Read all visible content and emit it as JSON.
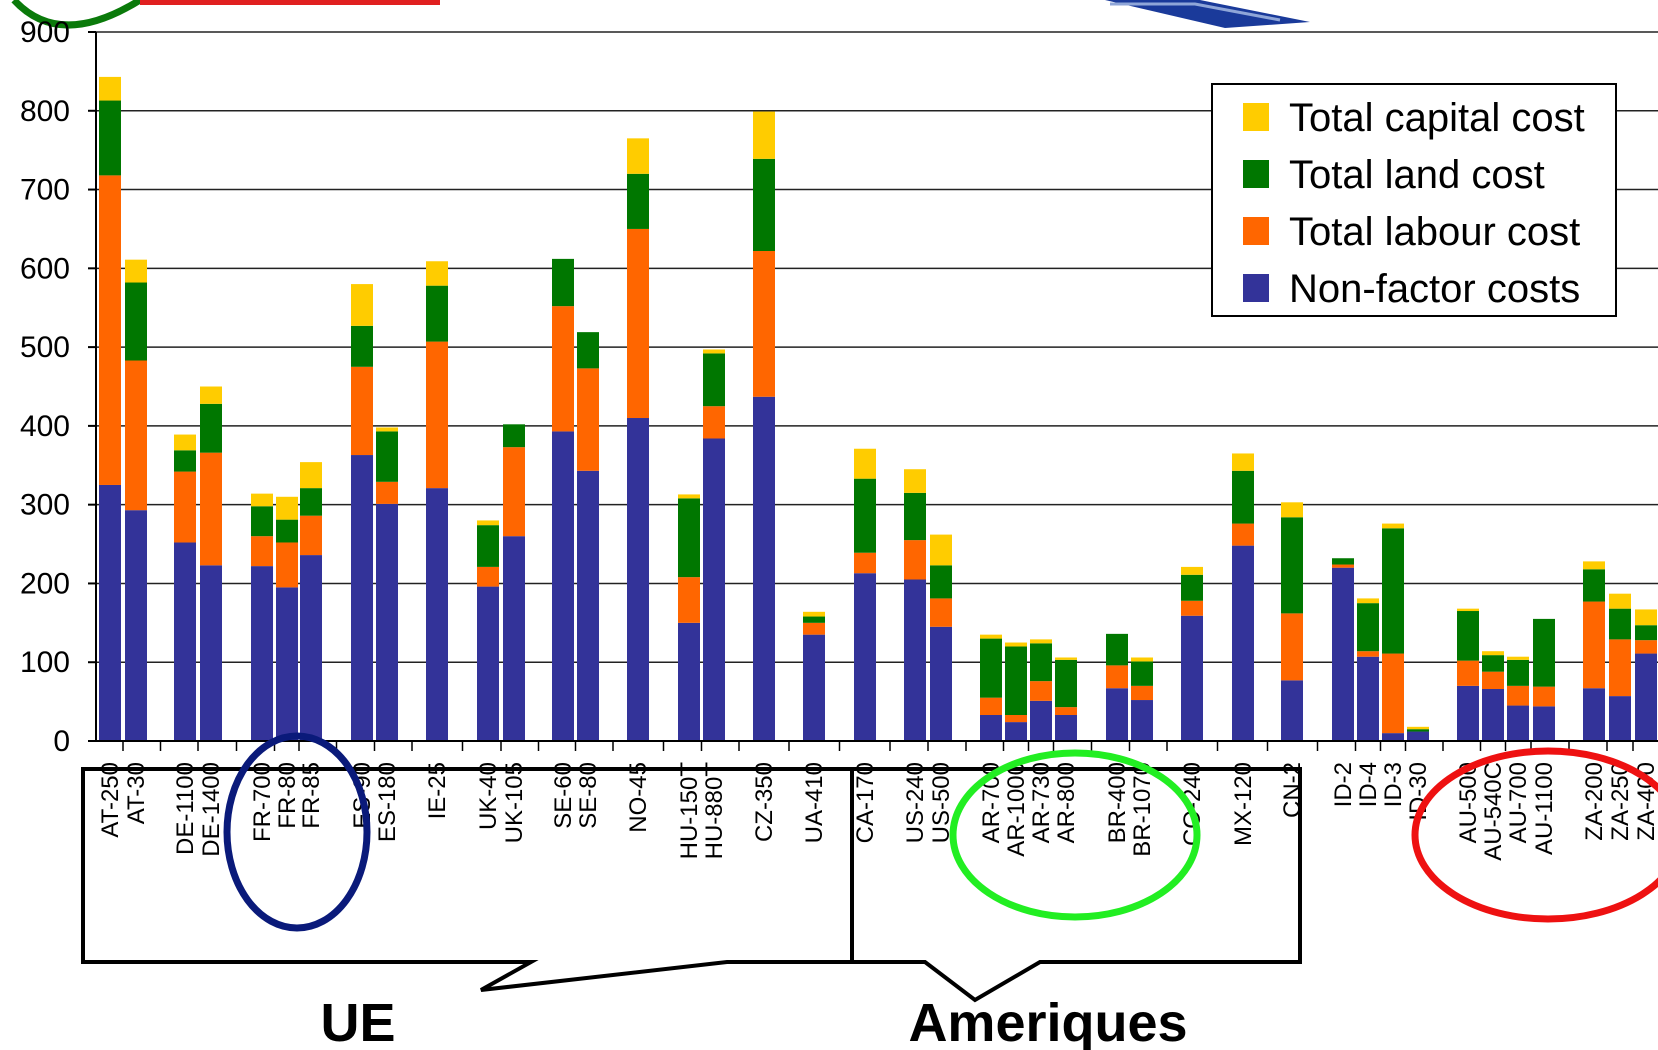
{
  "chart_data": {
    "type": "bar",
    "stacked": true,
    "ylim": [
      0,
      900
    ],
    "yticks": [
      0,
      100,
      200,
      300,
      400,
      500,
      600,
      700,
      800,
      900
    ],
    "grid": true,
    "legend_position": "top-right",
    "categories": [
      "AT-250",
      "AT-30",
      "DE-1100",
      "DE-1400",
      "FR-700",
      "FR-80",
      "FR-85",
      "ES-90",
      "ES-180",
      "IE-25",
      "UK-40",
      "UK-105",
      "SE-60",
      "SE-80",
      "NO-45",
      "HU-150T",
      "HU-880T",
      "CZ-350",
      "UA-410",
      "CA-170",
      "US-240",
      "US-500",
      "AR-700",
      "AR-1000",
      "AR-730",
      "AR-800",
      "BR-400",
      "BR-1070",
      "CO-240",
      "MX-120",
      "CN-2",
      "ID-2",
      "ID-4",
      "ID-3",
      "ID-30",
      "AU-500",
      "AU-540C",
      "AU-700",
      "AU-1100",
      "ZA-200",
      "ZA-250",
      "ZA-400"
    ],
    "series": [
      {
        "name": "Non-factor costs",
        "color": "#333399",
        "values": [
          325,
          293,
          252,
          223,
          222,
          195,
          236,
          363,
          301,
          321,
          196,
          260,
          393,
          343,
          410,
          150,
          384,
          437,
          135,
          213,
          205,
          145,
          33,
          24,
          51,
          33,
          67,
          52,
          159,
          248,
          77,
          220,
          107,
          10,
          12,
          70,
          66,
          45,
          44,
          67,
          57,
          111
        ]
      },
      {
        "name": "Total labour cost",
        "color": "#FF6600",
        "values": [
          393,
          190,
          90,
          143,
          38,
          57,
          50,
          112,
          28,
          186,
          25,
          113,
          159,
          130,
          240,
          58,
          41,
          185,
          15,
          26,
          50,
          36,
          22,
          9,
          25,
          10,
          29,
          18,
          19,
          28,
          85,
          4,
          7,
          101,
          0,
          32,
          22,
          25,
          25,
          110,
          72,
          17
        ]
      },
      {
        "name": "Total land cost",
        "color": "#007700",
        "values": [
          95,
          99,
          27,
          62,
          38,
          29,
          35,
          52,
          64,
          71,
          53,
          29,
          60,
          46,
          70,
          100,
          67,
          117,
          8,
          94,
          60,
          42,
          75,
          87,
          48,
          60,
          40,
          31,
          33,
          67,
          122,
          8,
          61,
          159,
          3,
          63,
          21,
          33,
          86,
          41,
          39,
          19
        ]
      },
      {
        "name": "Total capital cost",
        "color": "#FFCC00",
        "values": [
          30,
          29,
          20,
          22,
          16,
          29,
          33,
          53,
          5,
          31,
          6,
          0,
          0,
          0,
          45,
          5,
          5,
          60,
          6,
          38,
          30,
          39,
          5,
          5,
          5,
          3,
          0,
          5,
          10,
          22,
          19,
          0,
          6,
          6,
          3,
          3,
          5,
          4,
          0,
          10,
          19,
          20
        ]
      }
    ],
    "group_labels": [
      "UE",
      "Ameriques"
    ]
  }
}
